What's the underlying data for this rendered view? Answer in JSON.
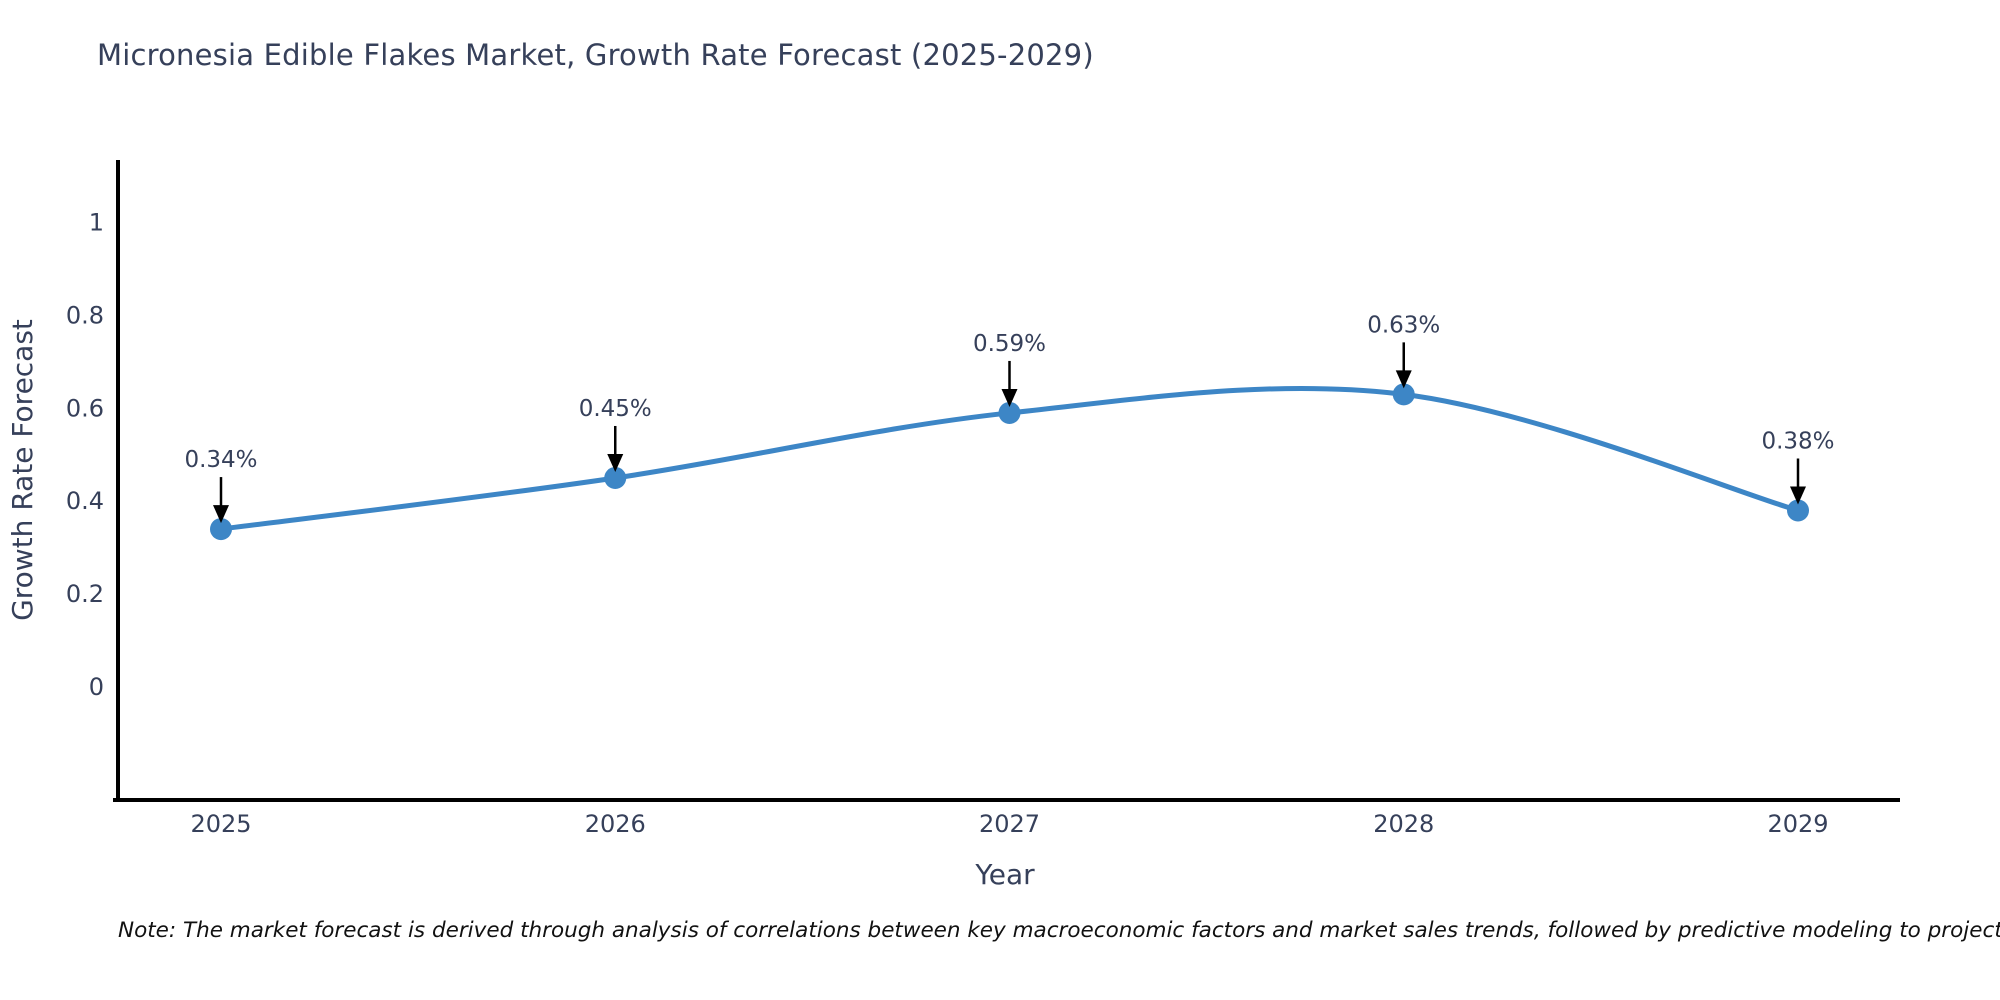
{
  "title": "Micronesia Edible Flakes Market, Growth Rate Forecast (2025-2029)",
  "note": "Note: The market forecast is derived through analysis of correlations between key macroeconomic factors and market sales trends, followed by predictive modeling to project future sales",
  "chart_data": {
    "type": "line",
    "title": "Micronesia Edible Flakes Market, Growth Rate Forecast (2025-2029)",
    "x": [
      2025,
      2026,
      2027,
      2028,
      2029
    ],
    "categories": [
      "2025",
      "2026",
      "2027",
      "2028",
      "2029"
    ],
    "values": [
      0.34,
      0.45,
      0.59,
      0.63,
      0.38
    ],
    "point_labels": [
      "0.34%",
      "0.45%",
      "0.59%",
      "0.63%",
      "0.38%"
    ],
    "xlabel": "Year",
    "ylabel": "Growth Rate Forecast",
    "yticks": [
      0,
      0.2,
      0.4,
      0.6,
      0.8,
      1
    ],
    "ytick_labels": [
      "0",
      "0.2",
      "0.4",
      "0.6",
      "0.8",
      "1"
    ],
    "ylim": [
      -0.243,
      1.17
    ],
    "grid": false,
    "legend_position": "none",
    "line_style": "smooth-spline",
    "annotation_style": "value-label-with-down-arrow",
    "colors": {
      "line": "#3d86c6",
      "marker": "#3d86c6",
      "axis": "#000000",
      "text": "#36405a",
      "annotation_text": "#36405a",
      "arrow": "#000000",
      "note_text": "#111111",
      "background": "#ffffff"
    }
  }
}
